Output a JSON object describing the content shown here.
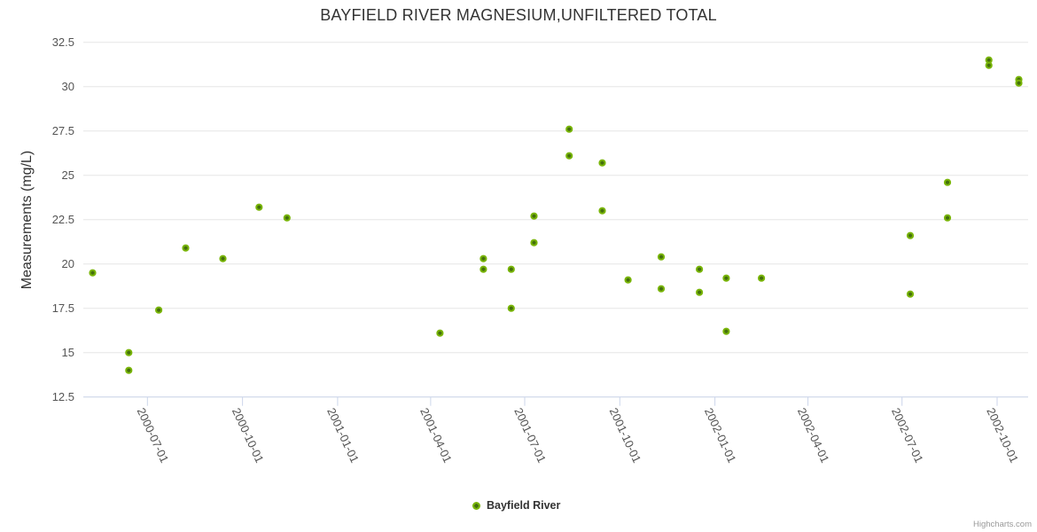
{
  "chart_data": {
    "type": "scatter",
    "title": "BAYFIELD RIVER MAGNESIUM,UNFILTERED TOTAL",
    "ylabel": "Measurements (mg/L)",
    "xlabel": "",
    "ylim": [
      12.5,
      32.5
    ],
    "yticks": [
      12.5,
      15,
      17.5,
      20,
      22.5,
      25,
      27.5,
      30,
      32.5
    ],
    "ytick_labels": [
      "12.5",
      "15",
      "17.5",
      "20",
      "22.5",
      "25",
      "27.5",
      "30",
      "32.5"
    ],
    "x_min": "2000-04-30",
    "x_max": "2002-10-31",
    "xticks": [
      "2000-07-01",
      "2000-10-01",
      "2001-01-01",
      "2001-04-01",
      "2001-07-01",
      "2001-10-01",
      "2002-01-01",
      "2002-04-01",
      "2002-07-01",
      "2002-10-01"
    ],
    "grid": true,
    "legend_position": "bottom-center",
    "credits": "Highcharts.com",
    "colors": {
      "background": "#ffffff",
      "grid": "#e6e6e6",
      "axis": "#ccd6eb",
      "title_text": "#333333",
      "axis_label_text": "#555555",
      "legend_text": "#333333",
      "credits_text": "#999999",
      "marker_ring": "#79b508",
      "marker_core": "#44700c"
    },
    "series": [
      {
        "name": "Bayfield River",
        "marker_ring_color": "#79b508",
        "marker_core_color": "#44700c",
        "points": [
          {
            "date": "2000-05-09",
            "value": 19.5
          },
          {
            "date": "2000-06-13",
            "value": 15.0
          },
          {
            "date": "2000-06-13",
            "value": 14.0
          },
          {
            "date": "2000-07-12",
            "value": 17.4
          },
          {
            "date": "2000-08-07",
            "value": 20.9
          },
          {
            "date": "2000-09-12",
            "value": 20.3
          },
          {
            "date": "2000-10-17",
            "value": 23.2
          },
          {
            "date": "2000-11-13",
            "value": 22.6
          },
          {
            "date": "2001-04-10",
            "value": 16.1
          },
          {
            "date": "2001-05-22",
            "value": 20.3
          },
          {
            "date": "2001-05-22",
            "value": 19.7
          },
          {
            "date": "2001-06-18",
            "value": 19.7
          },
          {
            "date": "2001-06-18",
            "value": 17.5
          },
          {
            "date": "2001-07-10",
            "value": 22.7
          },
          {
            "date": "2001-07-10",
            "value": 21.2
          },
          {
            "date": "2001-08-13",
            "value": 27.6
          },
          {
            "date": "2001-08-13",
            "value": 26.1
          },
          {
            "date": "2001-09-14",
            "value": 25.7
          },
          {
            "date": "2001-09-14",
            "value": 23.0
          },
          {
            "date": "2001-10-09",
            "value": 19.1
          },
          {
            "date": "2001-11-10",
            "value": 20.4
          },
          {
            "date": "2001-11-10",
            "value": 18.6
          },
          {
            "date": "2001-12-17",
            "value": 19.7
          },
          {
            "date": "2001-12-17",
            "value": 18.4
          },
          {
            "date": "2002-01-12",
            "value": 19.2
          },
          {
            "date": "2002-01-12",
            "value": 16.2
          },
          {
            "date": "2002-02-15",
            "value": 19.2
          },
          {
            "date": "2002-07-09",
            "value": 21.6
          },
          {
            "date": "2002-07-09",
            "value": 18.3
          },
          {
            "date": "2002-08-14",
            "value": 24.6
          },
          {
            "date": "2002-08-14",
            "value": 22.6
          },
          {
            "date": "2002-09-23",
            "value": 31.5
          },
          {
            "date": "2002-09-23",
            "value": 31.2
          },
          {
            "date": "2002-10-22",
            "value": 30.4
          },
          {
            "date": "2002-10-22",
            "value": 30.2
          }
        ]
      }
    ]
  }
}
